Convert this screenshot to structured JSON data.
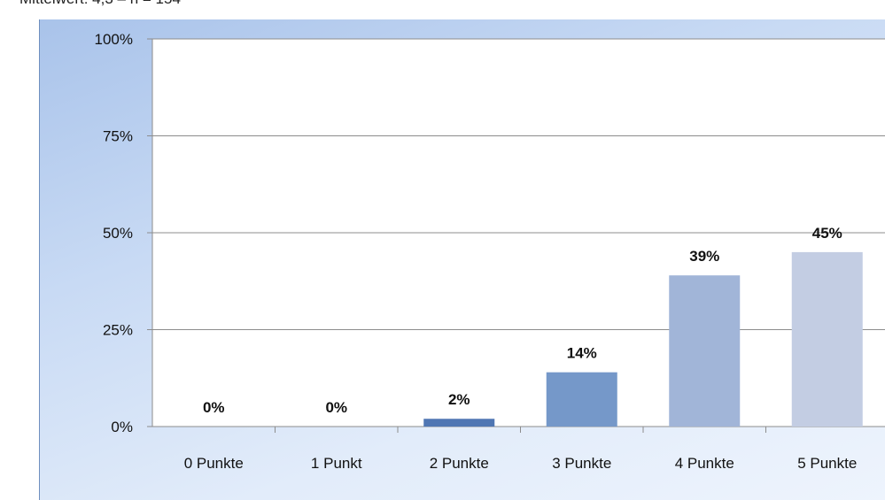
{
  "caption": "Mittelwert: 4,3 – n = 154",
  "chart_data": {
    "type": "bar",
    "categories": [
      "0 Punkte",
      "1 Punkt",
      "2 Punkte",
      "3 Punkte",
      "4 Punkte",
      "5 Punkte"
    ],
    "values": [
      0,
      0,
      2,
      14,
      39,
      45
    ],
    "data_labels": [
      "0%",
      "0%",
      "2%",
      "14%",
      "39%",
      "45%"
    ],
    "bar_colors": [
      "#5b80b8",
      "#5b80b8",
      "#4f76b3",
      "#7598c9",
      "#a1b5d8",
      "#c3cde3"
    ],
    "ylim": [
      0,
      100
    ],
    "yticks": [
      0,
      25,
      50,
      75,
      100
    ],
    "ytick_labels": [
      "0%",
      "25%",
      "50%",
      "75%",
      "100%"
    ],
    "grid": true,
    "title": "",
    "xlabel": "",
    "ylabel": ""
  }
}
